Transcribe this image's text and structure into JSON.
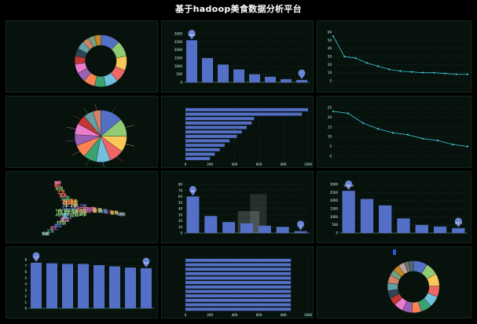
{
  "page_title": "基于hadoop美食数据分析平台",
  "colors": {
    "accent": "#5470c6",
    "line": "#3fc7d8",
    "grid": "#22352b",
    "text": "#cfe",
    "highlight": "#2a5bd7"
  },
  "chart_data": [
    {
      "id": "r1c1",
      "type": "pie",
      "donut": true,
      "title": "",
      "legend_position": "left",
      "legend": [],
      "values": [
        12,
        10,
        9,
        8,
        8,
        7,
        7,
        6,
        6,
        5,
        5,
        5,
        4,
        4,
        4
      ],
      "colors": [
        "#5470c6",
        "#91cc75",
        "#fac858",
        "#ee6666",
        "#73c0de",
        "#3ba272",
        "#fc8452",
        "#9a60b4",
        "#ea7ccc",
        "#c23531",
        "#2f4554",
        "#61a0a8",
        "#d48265",
        "#749f83",
        "#ca8622"
      ]
    },
    {
      "id": "r1c2",
      "type": "bar",
      "title": "",
      "categories": [
        "",
        "",
        "",
        "",
        "",
        "",
        "",
        ""
      ],
      "values": [
        2600,
        1500,
        1100,
        800,
        500,
        350,
        200,
        150
      ],
      "ylim": [
        0,
        3000
      ],
      "yticks": [
        0,
        500,
        1000,
        1500,
        2000,
        2500,
        3000
      ],
      "markers": [
        {
          "index": 0,
          "label": "2600"
        },
        {
          "index": 7,
          "label": ""
        }
      ]
    },
    {
      "id": "r1c3",
      "type": "line",
      "title": "",
      "categories": [
        "",
        "",
        "",
        "",
        "",
        "",
        "",
        "",
        "",
        "",
        "",
        "",
        ""
      ],
      "values": [
        55,
        30,
        28,
        22,
        18,
        14,
        12,
        11,
        10,
        10,
        9,
        8,
        8
      ],
      "ylim": [
        0,
        60
      ],
      "yticks": [
        0,
        10,
        20,
        30,
        40,
        50,
        60
      ]
    },
    {
      "id": "r2c1",
      "type": "pie",
      "donut": false,
      "title": "",
      "legend_position": "left",
      "legend": [],
      "values": [
        14,
        11,
        10,
        9,
        9,
        8,
        8,
        7,
        7,
        6,
        6,
        5
      ],
      "colors": [
        "#5470c6",
        "#91cc75",
        "#fac858",
        "#ee6666",
        "#73c0de",
        "#3ba272",
        "#fc8452",
        "#9a60b4",
        "#ea7ccc",
        "#c23531",
        "#61a0a8",
        "#d48265"
      ],
      "labels": [
        "",
        "",
        "",
        "",
        "",
        "",
        "",
        "",
        "",
        "",
        "",
        ""
      ]
    },
    {
      "id": "r2c2",
      "type": "hbar",
      "title": "",
      "categories": [
        "",
        "",
        "",
        "",
        "",
        "",
        "",
        "",
        "",
        "",
        "",
        ""
      ],
      "values": [
        1000,
        950,
        560,
        540,
        500,
        460,
        420,
        360,
        320,
        280,
        240,
        200
      ],
      "xlim": [
        0,
        1000
      ],
      "xticks": [
        0,
        200,
        400,
        600,
        800,
        1000
      ]
    },
    {
      "id": "r2c3",
      "type": "line",
      "title": "",
      "categories": [
        "",
        "",
        "",
        "",
        "",
        "",
        "",
        "",
        "",
        ""
      ],
      "values": [
        23,
        22,
        17,
        14,
        12,
        11,
        9,
        8,
        6,
        5
      ],
      "ylim": [
        0,
        25
      ],
      "yticks": [
        0,
        5,
        10,
        15,
        20,
        25
      ]
    },
    {
      "id": "r3c1",
      "type": "wordcloud",
      "title": "",
      "words": [
        {
          "text": "牛肉汤",
          "size": 11,
          "color": "#5470c6"
        },
        {
          "text": "凉拌猪蹄",
          "size": 10,
          "color": "#91cc75"
        },
        {
          "text": "牛排",
          "size": 10,
          "color": "#fac858"
        },
        {
          "text": "红烧肉",
          "size": 8,
          "color": "#ee6666"
        },
        {
          "text": "萝卜",
          "size": 8,
          "color": "#73c0de"
        },
        {
          "text": "鸡翅",
          "size": 7,
          "color": "#fc8452"
        },
        {
          "text": "排骨",
          "size": 7,
          "color": "#9a60b4"
        },
        {
          "text": "青菜",
          "size": 6,
          "color": "#ea7ccc"
        },
        {
          "text": "豆腐",
          "size": 6,
          "color": "#3ba272"
        },
        {
          "text": "鱼香",
          "size": 6,
          "color": "#fac858"
        },
        {
          "text": "炒饭",
          "size": 6,
          "color": "#91cc75"
        },
        {
          "text": "面条",
          "size": 5,
          "color": "#ee6666"
        },
        {
          "text": "鸡蛋",
          "size": 5,
          "color": "#73c0de"
        },
        {
          "text": "番茄",
          "size": 5,
          "color": "#5470c6"
        },
        {
          "text": "土豆",
          "size": 5,
          "color": "#fc8452"
        },
        {
          "text": "茄子",
          "size": 5,
          "color": "#9a60b4"
        },
        {
          "text": "虾仁",
          "size": 5,
          "color": "#ea7ccc"
        },
        {
          "text": "羊肉",
          "size": 5,
          "color": "#91cc75"
        },
        {
          "text": "酸菜",
          "size": 5,
          "color": "#fac858"
        },
        {
          "text": "玉米",
          "size": 5,
          "color": "#3ba272"
        },
        {
          "text": "蘑菇",
          "size": 4,
          "color": "#ee6666"
        },
        {
          "text": "粉丝",
          "size": 4,
          "color": "#73c0de"
        },
        {
          "text": "米饭",
          "size": 4,
          "color": "#5470c6"
        },
        {
          "text": "汤",
          "size": 4,
          "color": "#fc8452"
        },
        {
          "text": "蛋糕",
          "size": 4,
          "color": "#91cc75"
        },
        {
          "text": "火锅",
          "size": 4,
          "color": "#fac858"
        },
        {
          "text": "饺子",
          "size": 4,
          "color": "#ee6666"
        },
        {
          "text": "包子",
          "size": 4,
          "color": "#9a60b4"
        },
        {
          "text": "馒头",
          "size": 4,
          "color": "#73c0de"
        },
        {
          "text": "烧鸡",
          "size": 4,
          "color": "#ea7ccc"
        }
      ]
    },
    {
      "id": "r3c2",
      "type": "bar",
      "title": "",
      "categories": [
        "",
        "",
        "",
        "",
        "",
        "",
        ""
      ],
      "values": [
        60,
        28,
        18,
        16,
        12,
        10,
        3
      ],
      "ylim": [
        0,
        80
      ],
      "yticks": [
        0,
        10,
        20,
        30,
        40,
        50,
        60,
        70,
        80
      ],
      "markers": [
        {
          "index": 0,
          "label": "60"
        },
        {
          "index": 6,
          "label": "3"
        }
      ],
      "overlay": true
    },
    {
      "id": "r3c3",
      "type": "bar",
      "title": "",
      "categories": [
        "",
        "",
        "",
        "",
        "",
        "",
        ""
      ],
      "values": [
        2600,
        2100,
        1700,
        900,
        500,
        400,
        300
      ],
      "ylim": [
        0,
        3000
      ],
      "yticks": [
        0,
        500,
        1000,
        1500,
        2000,
        2500,
        3000
      ],
      "markers": [
        {
          "index": 0,
          "label": "2630.8"
        },
        {
          "index": 6,
          "label": "301.5"
        }
      ]
    },
    {
      "id": "r4c1",
      "type": "bar",
      "title": "",
      "categories": [
        "",
        "",
        "",
        "",
        "",
        "",
        "",
        ""
      ],
      "values": [
        7.5,
        7.4,
        7.3,
        7.3,
        7.1,
        6.9,
        6.7,
        6.6
      ],
      "ylim": [
        0,
        8
      ],
      "yticks": [
        0,
        1,
        2,
        3,
        4,
        5,
        6,
        7,
        8
      ],
      "markers": [
        {
          "index": 0,
          "label": "7.5"
        },
        {
          "index": 7,
          "label": "6.6"
        }
      ]
    },
    {
      "id": "r4c2",
      "type": "hbar",
      "title": "",
      "categories": [
        "",
        "",
        "",
        "",
        "",
        "",
        "",
        "",
        "",
        "",
        "",
        ""
      ],
      "values": [
        860,
        860,
        860,
        860,
        860,
        860,
        860,
        860,
        860,
        860,
        860,
        860
      ],
      "xlim": [
        0,
        1000
      ],
      "xticks": [
        0,
        200,
        400,
        600,
        800,
        1000
      ]
    },
    {
      "id": "r4c3",
      "type": "pie",
      "donut": true,
      "title": "",
      "legend_position": "left",
      "legend": [],
      "values": [
        9,
        8,
        8,
        7,
        7,
        7,
        6,
        6,
        6,
        5,
        5,
        5,
        5,
        4,
        4,
        4,
        3,
        3
      ],
      "colors": [
        "#5470c6",
        "#91cc75",
        "#fac858",
        "#ee6666",
        "#73c0de",
        "#3ba272",
        "#fc8452",
        "#9a60b4",
        "#ea7ccc",
        "#c23531",
        "#2f4554",
        "#61a0a8",
        "#d48265",
        "#749f83",
        "#ca8622",
        "#bda29a",
        "#6e7074",
        "#546570"
      ]
    }
  ]
}
